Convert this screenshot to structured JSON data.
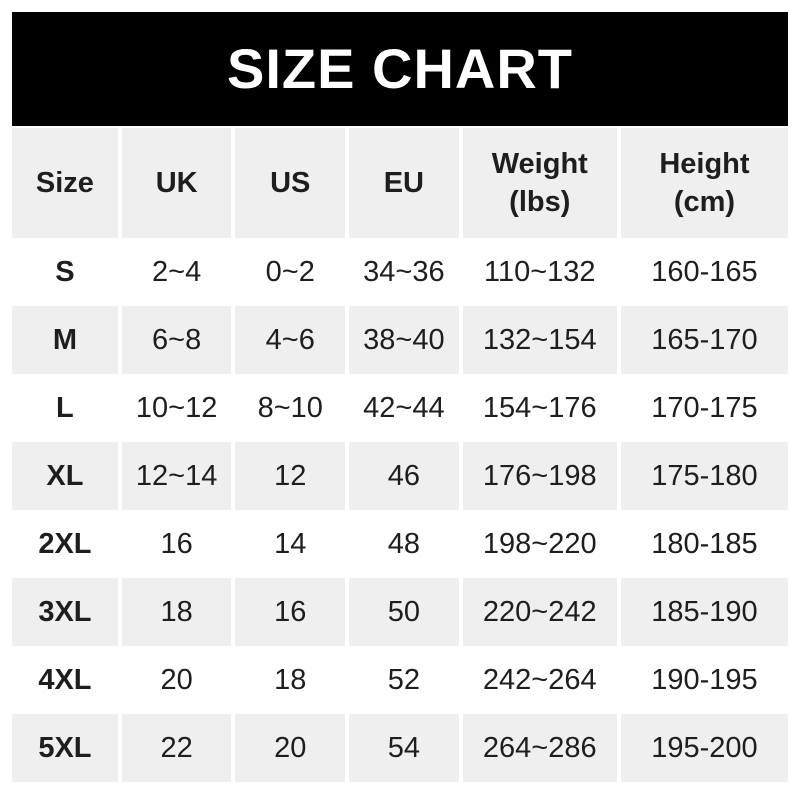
{
  "title": "SIZE CHART",
  "colors": {
    "banner_bg": "#000000",
    "banner_text": "#ffffff",
    "stripe": "#efefef",
    "row_bg": "#ffffff",
    "text": "#1e1e1e"
  },
  "chart_data": {
    "type": "table",
    "title": "SIZE CHART",
    "columns": [
      {
        "label": "Size",
        "unit": ""
      },
      {
        "label": "UK",
        "unit": ""
      },
      {
        "label": "US",
        "unit": ""
      },
      {
        "label": "EU",
        "unit": ""
      },
      {
        "label": "Weight",
        "unit": "(lbs)"
      },
      {
        "label": "Height",
        "unit": "(cm)"
      }
    ],
    "rows": [
      {
        "size": "S",
        "uk": "2~4",
        "us": "0~2",
        "eu": "34~36",
        "weight": "110~132",
        "height": "160-165"
      },
      {
        "size": "M",
        "uk": "6~8",
        "us": "4~6",
        "eu": "38~40",
        "weight": "132~154",
        "height": "165-170"
      },
      {
        "size": "L",
        "uk": "10~12",
        "us": "8~10",
        "eu": "42~44",
        "weight": "154~176",
        "height": "170-175"
      },
      {
        "size": "XL",
        "uk": "12~14",
        "us": "12",
        "eu": "46",
        "weight": "176~198",
        "height": "175-180"
      },
      {
        "size": "2XL",
        "uk": "16",
        "us": "14",
        "eu": "48",
        "weight": "198~220",
        "height": "180-185"
      },
      {
        "size": "3XL",
        "uk": "18",
        "us": "16",
        "eu": "50",
        "weight": "220~242",
        "height": "185-190"
      },
      {
        "size": "4XL",
        "uk": "20",
        "us": "18",
        "eu": "52",
        "weight": "242~264",
        "height": "190-195"
      },
      {
        "size": "5XL",
        "uk": "22",
        "us": "20",
        "eu": "54",
        "weight": "264~286",
        "height": "195-200"
      }
    ],
    "layout": {
      "header_background": "#efefef",
      "zebra_stripe_background": "#efefef",
      "separator_color": "#ffffff",
      "alternating_rows": true
    }
  }
}
